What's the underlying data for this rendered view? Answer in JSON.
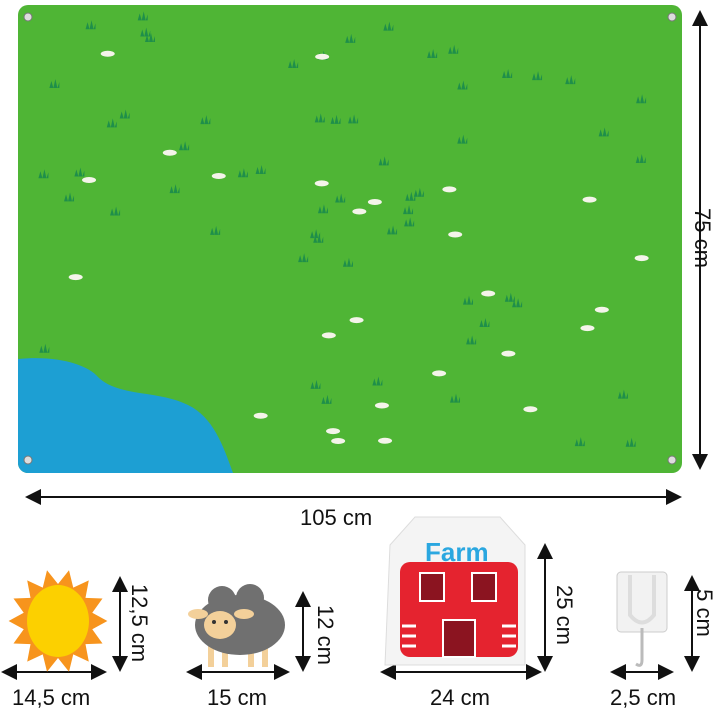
{
  "board": {
    "width_label": "105 cm",
    "height_label": "75 cm",
    "colors": {
      "felt": "#4fb535",
      "pond": "#1d9fd3"
    }
  },
  "pieces": [
    {
      "name": "sun",
      "width_label": "14,5 cm",
      "height_label": "12,5 cm"
    },
    {
      "name": "sheep",
      "width_label": "15 cm",
      "height_label": "12 cm"
    },
    {
      "name": "barn",
      "sign_text": "Farm",
      "width_label": "24 cm",
      "height_label": "25 cm"
    },
    {
      "name": "hook",
      "width_label": "2,5 cm",
      "height_label": "5 cm"
    }
  ]
}
